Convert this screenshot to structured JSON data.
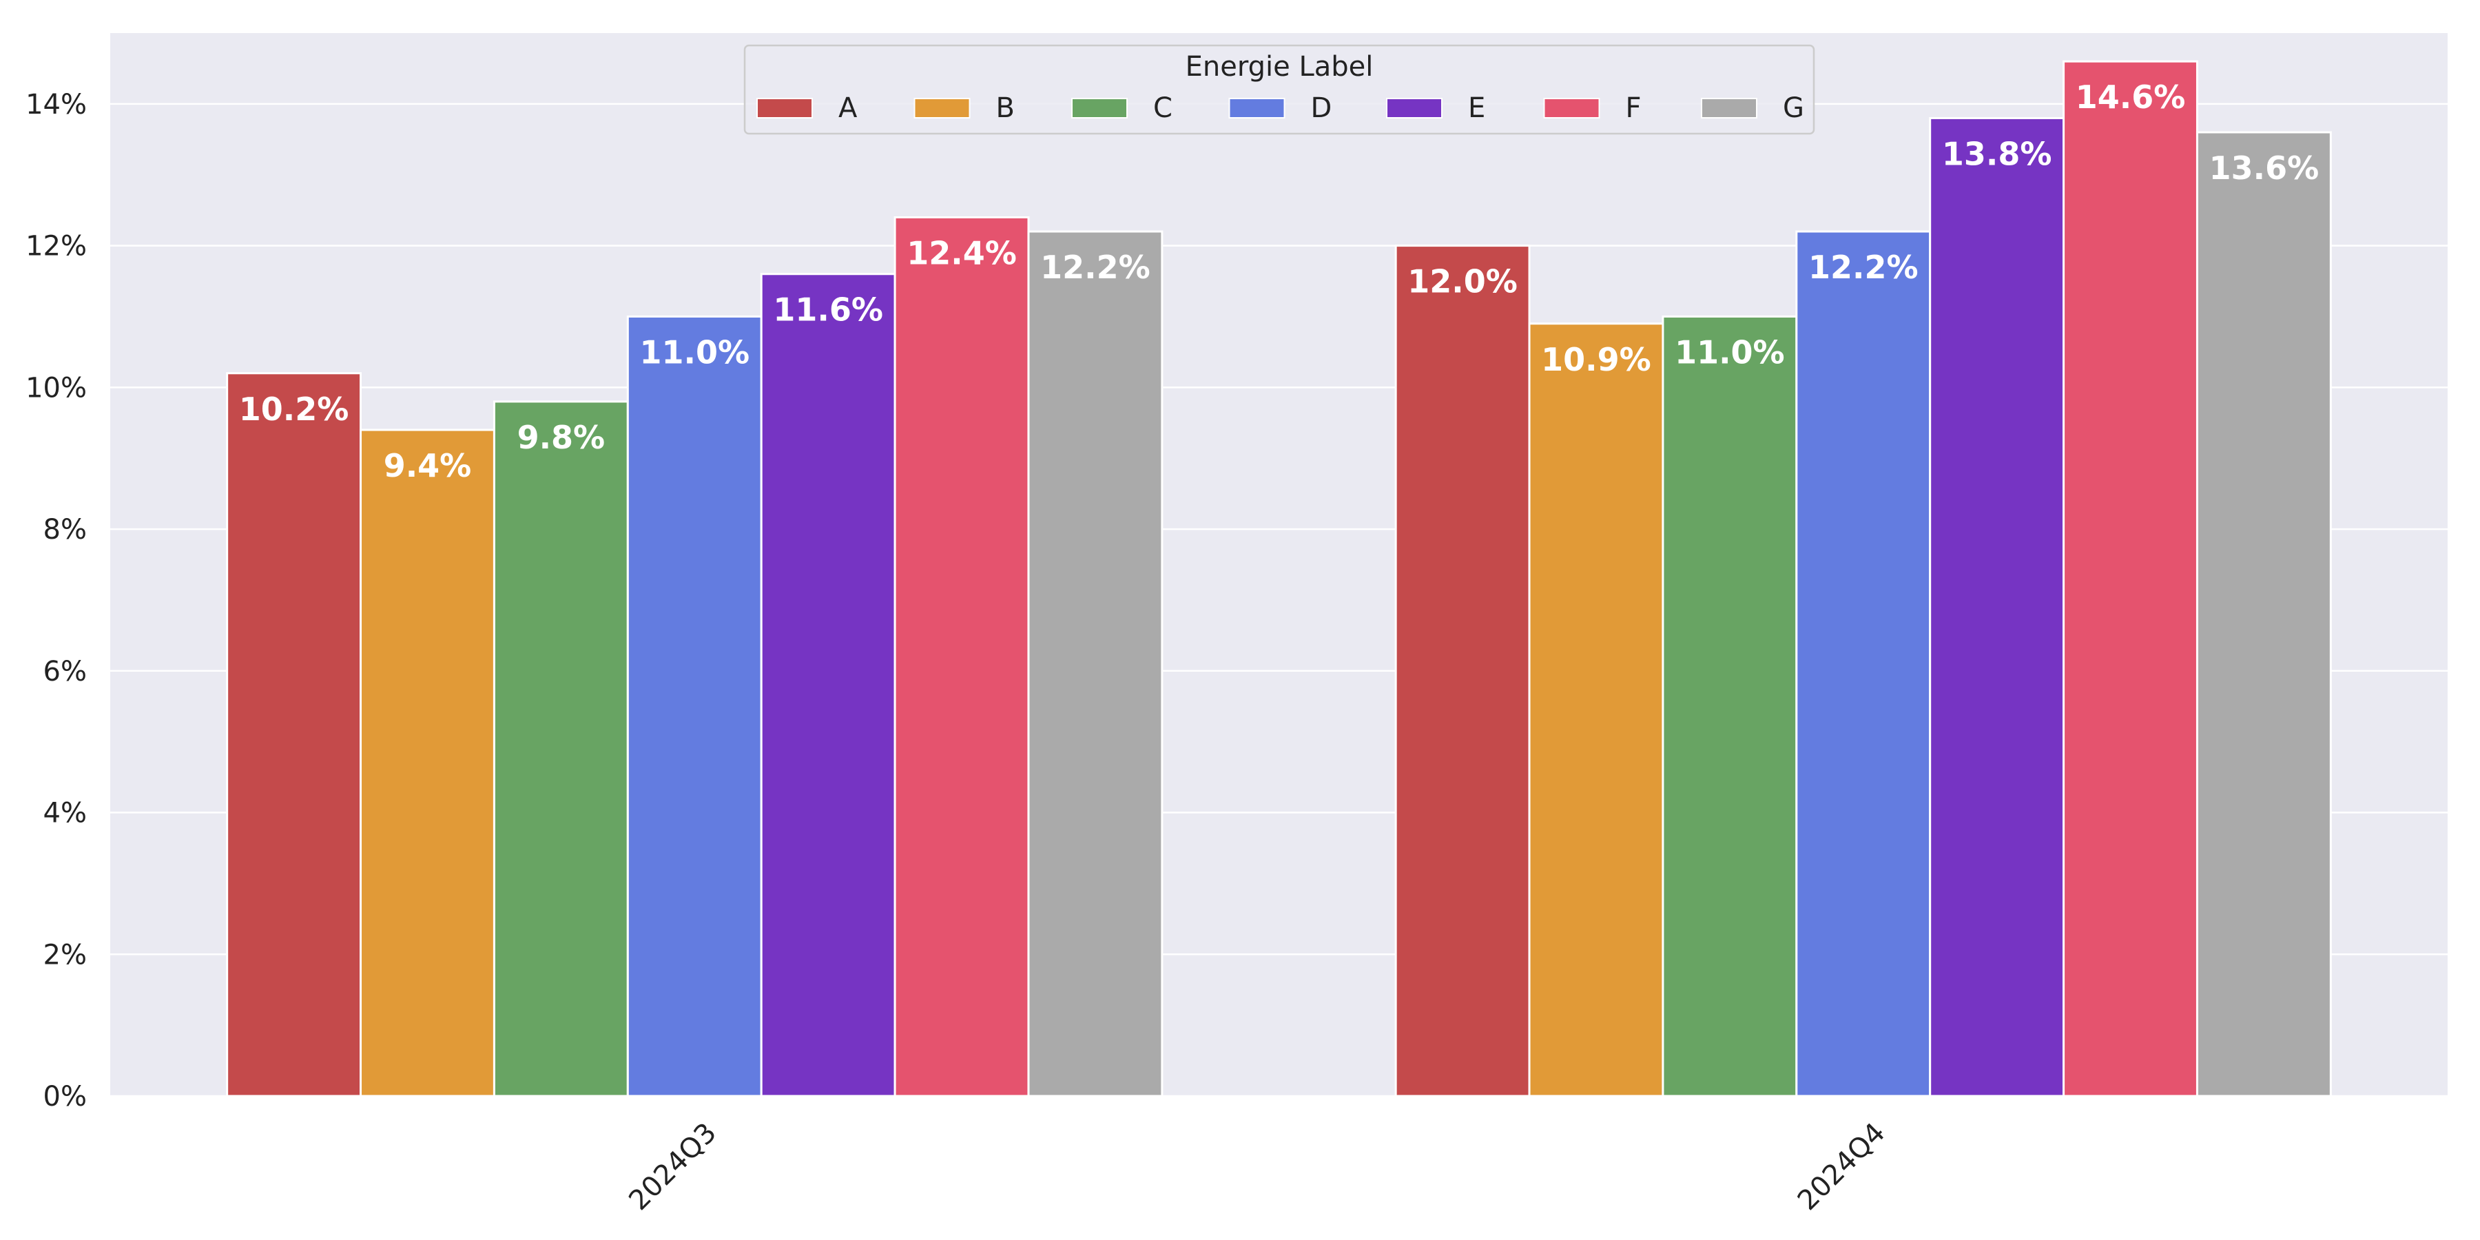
{
  "chart_data": {
    "type": "bar",
    "categories": [
      "2024Q3",
      "2024Q4"
    ],
    "series": [
      {
        "name": "A",
        "color": "#c44a4b",
        "values": [
          10.2,
          12.0
        ],
        "labels": [
          "10.2%",
          "12.0%"
        ]
      },
      {
        "name": "B",
        "color": "#e19a37",
        "values": [
          9.4,
          10.9
        ],
        "labels": [
          "9.4%",
          "10.9%"
        ]
      },
      {
        "name": "C",
        "color": "#68a463",
        "values": [
          9.8,
          11.0
        ],
        "labels": [
          "9.8%",
          "11.0%"
        ]
      },
      {
        "name": "D",
        "color": "#637ce0",
        "values": [
          11.0,
          12.2
        ],
        "labels": [
          "11.0%",
          "12.2%"
        ]
      },
      {
        "name": "E",
        "color": "#7634c3",
        "values": [
          11.6,
          13.8
        ],
        "labels": [
          "11.6%",
          "13.8%"
        ]
      },
      {
        "name": "F",
        "color": "#e5536e",
        "values": [
          12.4,
          14.6
        ],
        "labels": [
          "12.4%",
          "14.6%"
        ]
      },
      {
        "name": "G",
        "color": "#aaaaaa",
        "values": [
          12.2,
          13.6
        ],
        "labels": [
          "12.2%",
          "13.6%"
        ]
      }
    ],
    "ylim": [
      0,
      15
    ],
    "yticks": [
      0,
      2,
      4,
      6,
      8,
      10,
      12,
      14
    ],
    "ytick_labels": [
      "0%",
      "2%",
      "4%",
      "6%",
      "8%",
      "10%",
      "12%",
      "14%"
    ],
    "title": "",
    "xlabel": "",
    "ylabel": "",
    "legend": {
      "title": "Energie Label",
      "placement": "top-center",
      "columns": 7
    },
    "grid": true,
    "background": "#eaeaf2"
  }
}
